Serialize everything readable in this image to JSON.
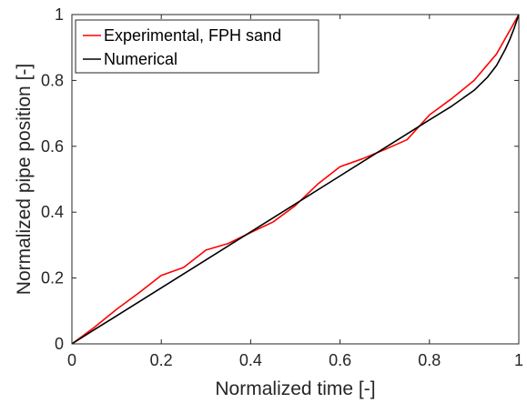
{
  "chart_data": {
    "type": "line",
    "title": "",
    "xlabel": "Normalized time [-]",
    "ylabel": "Normalized pipe position [-]",
    "xlim": [
      0,
      1
    ],
    "ylim": [
      0,
      1
    ],
    "xticks": [
      0,
      0.2,
      0.4,
      0.6,
      0.8,
      1
    ],
    "yticks": [
      0,
      0.2,
      0.4,
      0.6,
      0.8,
      1
    ],
    "xtick_labels": [
      "0",
      "0.2",
      "0.4",
      "0.6",
      "0.8",
      "1"
    ],
    "ytick_labels": [
      "0",
      "0.2",
      "0.4",
      "0.6",
      "0.8",
      "1"
    ],
    "grid": false,
    "legend_position": "top-left",
    "series": [
      {
        "name": "Experimental, FPH sand",
        "color": "#ff0000",
        "x": [
          0,
          0.05,
          0.1,
          0.15,
          0.2,
          0.25,
          0.3,
          0.35,
          0.4,
          0.45,
          0.5,
          0.55,
          0.6,
          0.65,
          0.7,
          0.75,
          0.8,
          0.85,
          0.9,
          0.95,
          1.0
        ],
        "y": [
          0,
          0.05,
          0.105,
          0.155,
          0.208,
          0.232,
          0.285,
          0.305,
          0.338,
          0.37,
          0.42,
          0.485,
          0.538,
          0.562,
          0.59,
          0.62,
          0.695,
          0.745,
          0.8,
          0.88,
          1.0
        ]
      },
      {
        "name": "Numerical",
        "color": "#000000",
        "x": [
          0,
          0.05,
          0.1,
          0.2,
          0.3,
          0.4,
          0.5,
          0.6,
          0.7,
          0.8,
          0.85,
          0.9,
          0.93,
          0.95,
          0.97,
          0.98,
          0.99,
          1.0
        ],
        "y": [
          0,
          0.043,
          0.085,
          0.17,
          0.255,
          0.34,
          0.425,
          0.51,
          0.595,
          0.68,
          0.722,
          0.77,
          0.81,
          0.845,
          0.895,
          0.925,
          0.96,
          1.0
        ]
      }
    ]
  }
}
